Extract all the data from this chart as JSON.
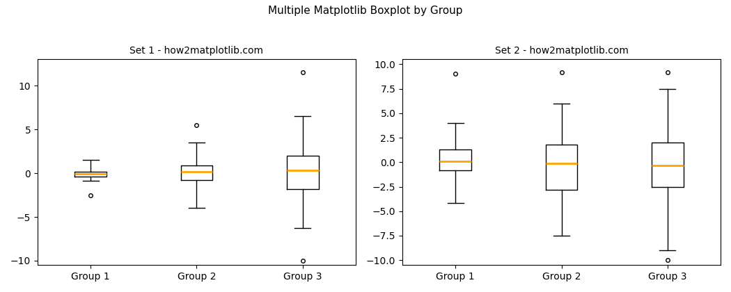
{
  "title": "Multiple Matplotlib Boxplot by Group",
  "subplot1_title": "Set 1 - how2matplotlib.com",
  "subplot2_title": "Set 2 - how2matplotlib.com",
  "groups": [
    "Group 1",
    "Group 2",
    "Group 3"
  ],
  "median_color": "orange",
  "box_color": "black",
  "flier_marker": "o",
  "flier_markersize": 4,
  "title_fontsize": 11,
  "subplot_title_fontsize": 10,
  "figsize": [
    10.5,
    4.2
  ],
  "dpi": 100,
  "set1": {
    "group1": {
      "med": -0.1,
      "q1": -0.4,
      "q3": 0.2,
      "whislo": -0.9,
      "whishi": 1.5,
      "fliers": [
        -2.5
      ]
    },
    "group2": {
      "med": 0.15,
      "q1": -0.8,
      "q3": 0.9,
      "whislo": -4.0,
      "whishi": 3.5,
      "fliers": [
        5.5
      ]
    },
    "group3": {
      "med": 0.3,
      "q1": -1.8,
      "q3": 2.0,
      "whislo": -6.3,
      "whishi": 6.5,
      "fliers": [
        11.5,
        -10.0
      ]
    }
  },
  "set2": {
    "group1": {
      "med": 0.1,
      "q1": -0.8,
      "q3": 1.3,
      "whislo": -4.2,
      "whishi": 4.0,
      "fliers": [
        9.0
      ]
    },
    "group2": {
      "med": -0.1,
      "q1": -2.8,
      "q3": 1.8,
      "whislo": -7.5,
      "whishi": 6.0,
      "fliers": [
        9.2
      ]
    },
    "group3": {
      "med": -0.3,
      "q1": -2.5,
      "q3": 2.0,
      "whislo": -9.0,
      "whishi": 7.5,
      "fliers": [
        9.2,
        -10.0
      ]
    }
  }
}
